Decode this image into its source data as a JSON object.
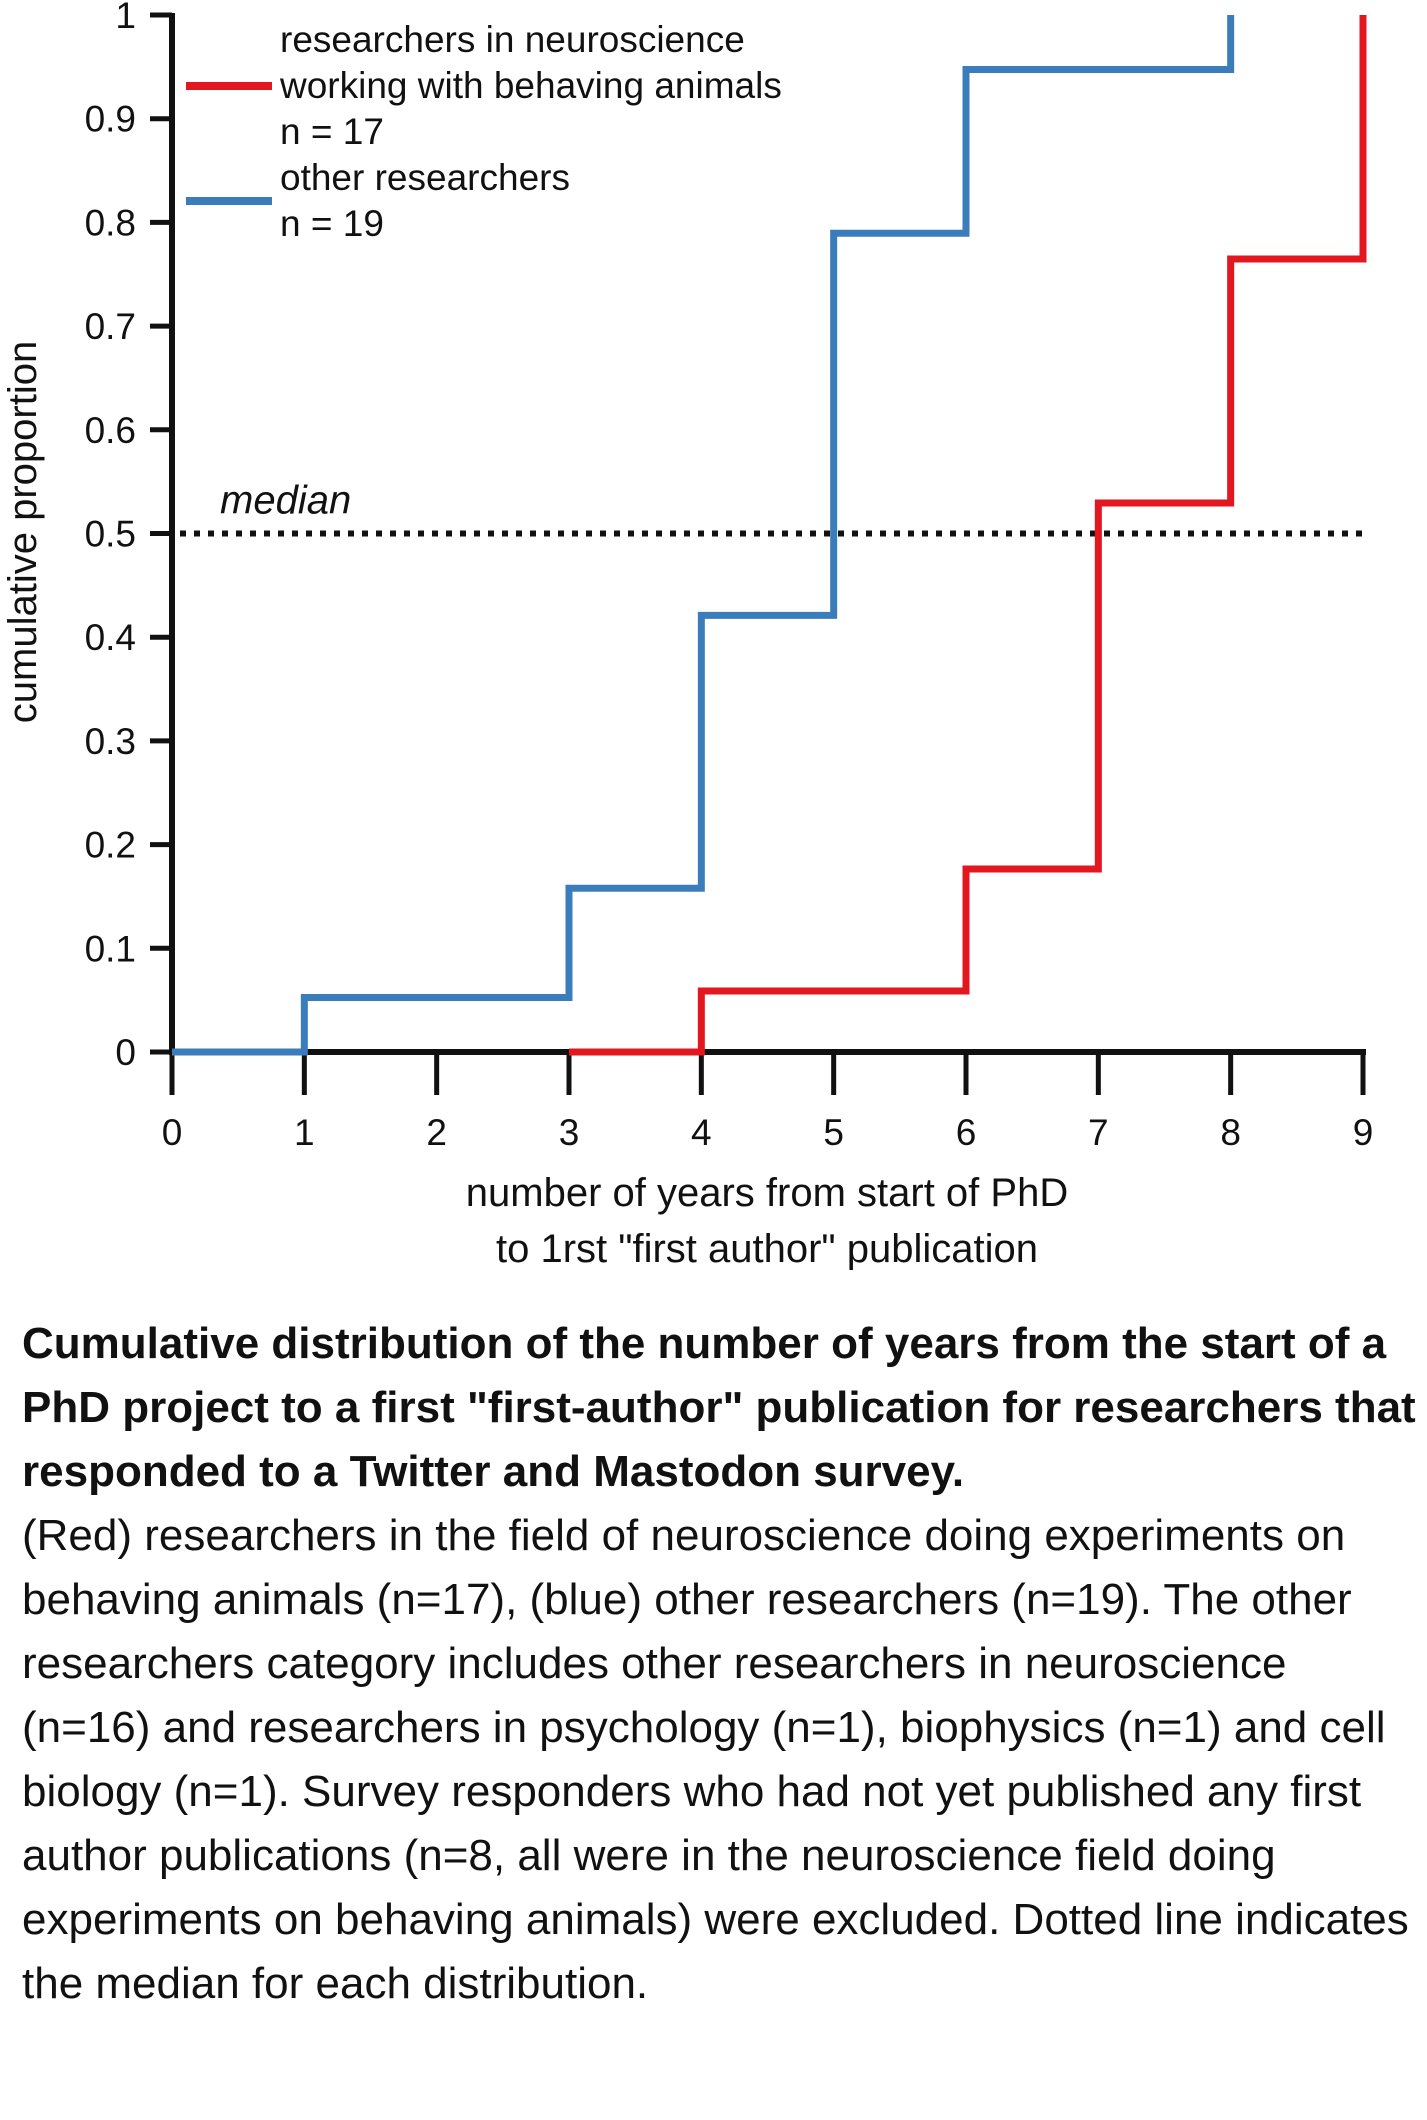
{
  "chart_data": {
    "type": "line",
    "step": true,
    "xlabel_lines": [
      "number of years from start of PhD",
      "to 1rst \"first author\" publication"
    ],
    "ylabel": "cumulative proportion",
    "xlim": [
      0,
      9
    ],
    "ylim": [
      0,
      1
    ],
    "x_ticks": [
      "0",
      "1",
      "2",
      "3",
      "4",
      "5",
      "6",
      "7",
      "8",
      "9"
    ],
    "y_ticks": [
      "0",
      "0.1",
      "0.2",
      "0.3",
      "0.4",
      "0.5",
      "0.6",
      "0.7",
      "0.8",
      "0.9",
      "1"
    ],
    "grid": false,
    "legend_position": "top-left",
    "series": [
      {
        "legend_lines": [
          "researchers in neuroscience",
          "working with behaving animals",
          "n = 17"
        ],
        "color": "#e3171f",
        "x": [
          3,
          4,
          5,
          6,
          7,
          8,
          9
        ],
        "y": [
          0,
          0.0588,
          0.0588,
          0.1765,
          0.5294,
          0.7647,
          1.0
        ]
      },
      {
        "legend_lines": [
          "other researchers",
          "n = 19"
        ],
        "color": "#3b7dbb",
        "x": [
          0,
          1,
          2,
          3,
          4,
          5,
          6,
          8
        ],
        "y": [
          0,
          0.0526,
          0.0526,
          0.1579,
          0.4211,
          0.7895,
          0.9474,
          1.0
        ]
      }
    ],
    "reference_line": {
      "y": 0.5,
      "label": "median",
      "style": "dotted"
    }
  },
  "caption": {
    "title": "Cumulative distribution of the number of years from the start of a PhD project to a first \"first-author\" publication for researchers that responded to a Twitter and Mastodon survey.",
    "body": "(Red) researchers in the field of neuroscience doing experiments on behaving animals (n=17), (blue) other researchers (n=19). The other researchers category includes other researchers in neuroscience (n=16) and researchers in psychology (n=1), biophysics (n=1) and cell biology (n=1). Survey responders who had not yet published any first author publications (n=8, all were in the neuroscience field doing experiments on behaving animals) were excluded. Dotted line indicates the median for each distribution."
  }
}
